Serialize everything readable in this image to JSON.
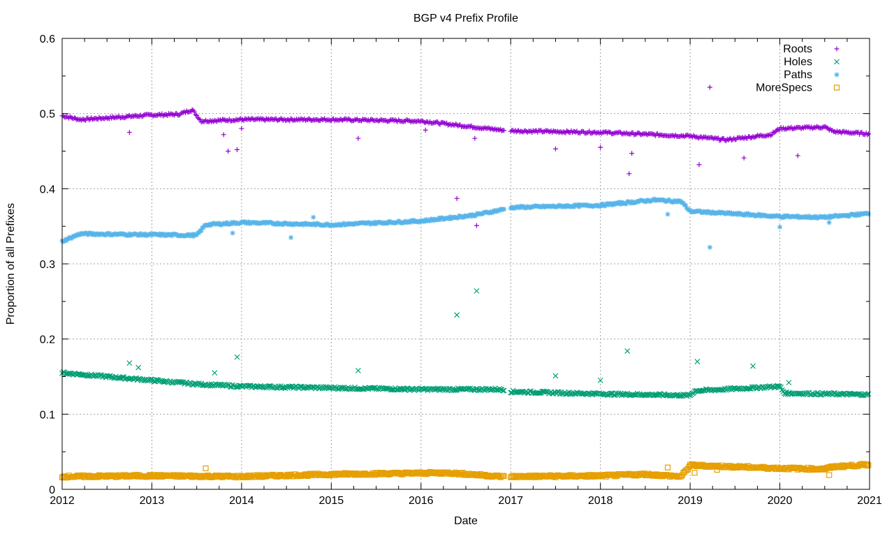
{
  "chart_data": {
    "type": "scatter",
    "title": "BGP v4 Prefix Profile",
    "xlabel": "Date",
    "ylabel": "Proportion of all Prefixes",
    "xlim": [
      2012,
      2021
    ],
    "ylim": [
      0,
      0.6
    ],
    "x_ticks": [
      "2012",
      "2013",
      "2014",
      "2015",
      "2016",
      "2017",
      "2018",
      "2019",
      "2020",
      "2021"
    ],
    "y_ticks": [
      "0",
      "0.1",
      "0.2",
      "0.3",
      "0.4",
      "0.5",
      "0.6"
    ],
    "grid": true,
    "legend_position": "top-right",
    "gap": [
      2016.93,
      2017.0
    ],
    "series": [
      {
        "name": "Roots",
        "marker": "plus",
        "color": "#9400d3",
        "trend": [
          [
            2012,
            0.497
          ],
          [
            2012.2,
            0.492
          ],
          [
            2013,
            0.498
          ],
          [
            2013.3,
            0.499
          ],
          [
            2013.45,
            0.505
          ],
          [
            2013.55,
            0.49
          ],
          [
            2014,
            0.492
          ],
          [
            2015,
            0.492
          ],
          [
            2016,
            0.49
          ],
          [
            2016.9,
            0.478
          ],
          [
            2017,
            0.477
          ],
          [
            2018,
            0.475
          ],
          [
            2018.6,
            0.472
          ],
          [
            2019,
            0.47
          ],
          [
            2019.4,
            0.465
          ],
          [
            2019.9,
            0.472
          ],
          [
            2020,
            0.48
          ],
          [
            2020.5,
            0.482
          ],
          [
            2020.6,
            0.476
          ],
          [
            2021,
            0.473
          ]
        ],
        "outliers": [
          [
            2019.22,
            0.535
          ],
          [
            2018.32,
            0.42
          ],
          [
            2013.85,
            0.45
          ],
          [
            2013.95,
            0.452
          ],
          [
            2014.0,
            0.48
          ],
          [
            2015.3,
            0.467
          ],
          [
            2016.6,
            0.467
          ],
          [
            2017.5,
            0.453
          ],
          [
            2019.1,
            0.432
          ],
          [
            2019.6,
            0.441
          ],
          [
            2020.2,
            0.444
          ],
          [
            2018.0,
            0.455
          ],
          [
            2016.4,
            0.387
          ],
          [
            2016.62,
            0.351
          ],
          [
            2012.75,
            0.475
          ],
          [
            2013.8,
            0.472
          ],
          [
            2016.05,
            0.478
          ],
          [
            2018.35,
            0.447
          ]
        ]
      },
      {
        "name": "Holes",
        "marker": "cross",
        "color": "#009e73",
        "trend": [
          [
            2012,
            0.155
          ],
          [
            2013,
            0.145
          ],
          [
            2013.5,
            0.14
          ],
          [
            2014,
            0.137
          ],
          [
            2015,
            0.135
          ],
          [
            2016,
            0.133
          ],
          [
            2016.9,
            0.133
          ],
          [
            2017,
            0.13
          ],
          [
            2018,
            0.127
          ],
          [
            2019,
            0.125
          ],
          [
            2019.05,
            0.131
          ],
          [
            2020,
            0.137
          ],
          [
            2020.05,
            0.128
          ],
          [
            2021,
            0.126
          ]
        ],
        "outliers": [
          [
            2016.4,
            0.232
          ],
          [
            2016.62,
            0.264
          ],
          [
            2018.3,
            0.184
          ],
          [
            2013.95,
            0.176
          ],
          [
            2019.08,
            0.17
          ],
          [
            2019.7,
            0.164
          ],
          [
            2012.75,
            0.168
          ],
          [
            2015.3,
            0.158
          ],
          [
            2017.5,
            0.151
          ],
          [
            2012.85,
            0.162
          ],
          [
            2013.7,
            0.155
          ],
          [
            2020.1,
            0.142
          ],
          [
            2018.0,
            0.145
          ]
        ]
      },
      {
        "name": "Paths",
        "marker": "star",
        "color": "#56b4e9",
        "trend": [
          [
            2012,
            0.33
          ],
          [
            2012.2,
            0.34
          ],
          [
            2013.5,
            0.338
          ],
          [
            2013.6,
            0.352
          ],
          [
            2014,
            0.355
          ],
          [
            2015,
            0.352
          ],
          [
            2016,
            0.357
          ],
          [
            2016.6,
            0.365
          ],
          [
            2016.9,
            0.372
          ],
          [
            2017,
            0.375
          ],
          [
            2018,
            0.378
          ],
          [
            2018.6,
            0.385
          ],
          [
            2018.9,
            0.383
          ],
          [
            2019,
            0.37
          ],
          [
            2020,
            0.363
          ],
          [
            2020.5,
            0.362
          ],
          [
            2021,
            0.367
          ]
        ],
        "outliers": [
          [
            2019.22,
            0.322
          ],
          [
            2013.9,
            0.341
          ],
          [
            2014.55,
            0.335
          ],
          [
            2020.0,
            0.349
          ],
          [
            2014.8,
            0.362
          ],
          [
            2018.75,
            0.366
          ],
          [
            2020.55,
            0.355
          ]
        ]
      },
      {
        "name": "MoreSpecs",
        "marker": "square",
        "color": "#e69f00",
        "trend": [
          [
            2012,
            0.017
          ],
          [
            2013,
            0.018
          ],
          [
            2014,
            0.017
          ],
          [
            2015,
            0.02
          ],
          [
            2016.3,
            0.022
          ],
          [
            2016.9,
            0.017
          ],
          [
            2017,
            0.017
          ],
          [
            2018,
            0.018
          ],
          [
            2018.5,
            0.02
          ],
          [
            2018.9,
            0.017
          ],
          [
            2019,
            0.032
          ],
          [
            2020,
            0.028
          ],
          [
            2020.5,
            0.027
          ],
          [
            2020.6,
            0.03
          ],
          [
            2021,
            0.033
          ]
        ],
        "outliers": [
          [
            2013.6,
            0.028
          ],
          [
            2018.75,
            0.029
          ],
          [
            2020.55,
            0.019
          ],
          [
            2019.3,
            0.026
          ],
          [
            2019.05,
            0.022
          ]
        ]
      }
    ]
  }
}
